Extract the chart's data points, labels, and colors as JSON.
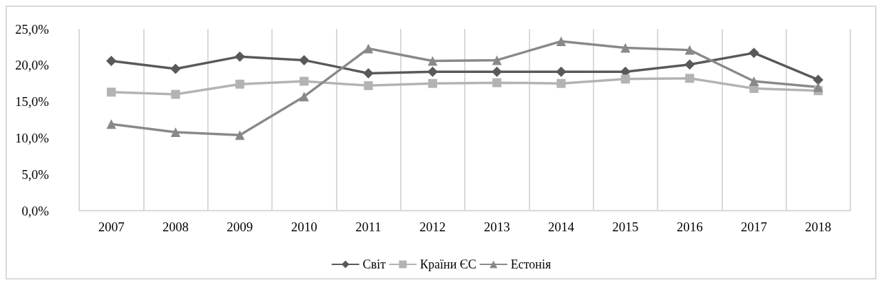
{
  "chart_data": {
    "type": "line",
    "categories": [
      "2007",
      "2008",
      "2009",
      "2010",
      "2011",
      "2012",
      "2013",
      "2014",
      "2015",
      "2016",
      "2017",
      "2018"
    ],
    "series": [
      {
        "name": "Світ",
        "color": "#595959",
        "marker": "diamond",
        "values": [
          20.6,
          19.5,
          21.2,
          20.7,
          18.9,
          19.1,
          19.1,
          19.1,
          19.1,
          20.1,
          21.7,
          18.0
        ]
      },
      {
        "name": "Країни ЄС",
        "color": "#b3b3b3",
        "marker": "square",
        "values": [
          16.3,
          16.0,
          17.4,
          17.8,
          17.2,
          17.5,
          17.6,
          17.5,
          18.1,
          18.2,
          16.8,
          16.5
        ]
      },
      {
        "name": "Естонія",
        "color": "#898989",
        "marker": "triangle",
        "values": [
          11.9,
          10.8,
          10.4,
          15.7,
          22.3,
          20.6,
          20.7,
          23.3,
          22.4,
          22.1,
          17.8,
          17.0
        ]
      }
    ],
    "ylim": [
      0,
      25
    ],
    "yticks": [
      {
        "value": 0,
        "label": "0,0%"
      },
      {
        "value": 5,
        "label": "5,0%"
      },
      {
        "value": 10,
        "label": "10,0%"
      },
      {
        "value": 15,
        "label": "15,0%"
      },
      {
        "value": 20,
        "label": "20,0%"
      },
      {
        "value": 25,
        "label": "25,0%"
      }
    ],
    "grid": "x",
    "legend": "bottom",
    "line_style": "solid"
  }
}
